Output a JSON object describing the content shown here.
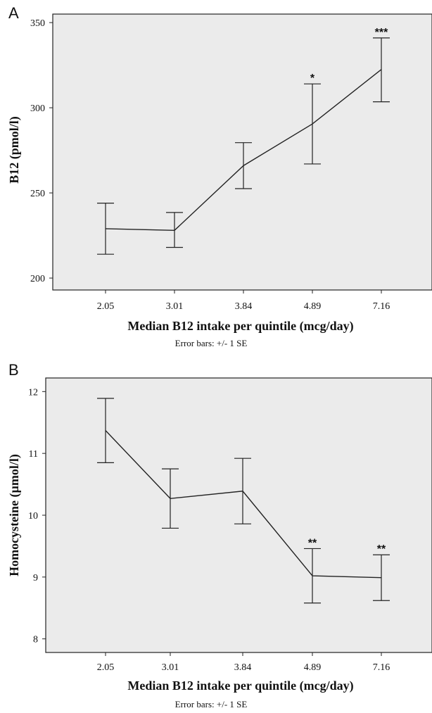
{
  "chart_data": [
    {
      "type": "line",
      "panel_label": "A",
      "categories": [
        "2.05",
        "3.01",
        "3.84",
        "4.89",
        "7.16"
      ],
      "values": [
        229,
        228,
        266,
        290.5,
        322.5
      ],
      "error_low": [
        214,
        218,
        252.5,
        267,
        303.5
      ],
      "error_high": [
        244,
        238.5,
        279.5,
        314,
        341
      ],
      "annotations": [
        "",
        "",
        "",
        "*",
        "***"
      ],
      "xlabel": "Median B12 intake per quintile (mcg/day)",
      "ylabel": "B12 (pmol/l)",
      "ylim": [
        193,
        355
      ],
      "yticks": [
        200,
        250,
        300,
        350
      ],
      "note": "Error bars: +/- 1 SE",
      "background": "#ebebeb",
      "line_color": "#222222"
    },
    {
      "type": "line",
      "panel_label": "B",
      "categories": [
        "2.05",
        "3.01",
        "3.84",
        "4.89",
        "7.16"
      ],
      "values": [
        11.37,
        10.27,
        10.39,
        9.02,
        8.99
      ],
      "error_low": [
        10.85,
        9.79,
        9.86,
        8.58,
        8.62
      ],
      "error_high": [
        11.89,
        10.75,
        10.92,
        9.46,
        9.36
      ],
      "annotations": [
        "",
        "",
        "",
        "**",
        "**"
      ],
      "xlabel": "Median B12 intake per quintile (mcg/day)",
      "ylabel": "Homocysteine (µmol/l)",
      "ylim": [
        7.78,
        12.22
      ],
      "yticks": [
        8,
        9,
        10,
        11,
        12
      ],
      "note": "Error bars: +/- 1 SE",
      "background": "#ebebeb",
      "line_color": "#222222"
    }
  ]
}
